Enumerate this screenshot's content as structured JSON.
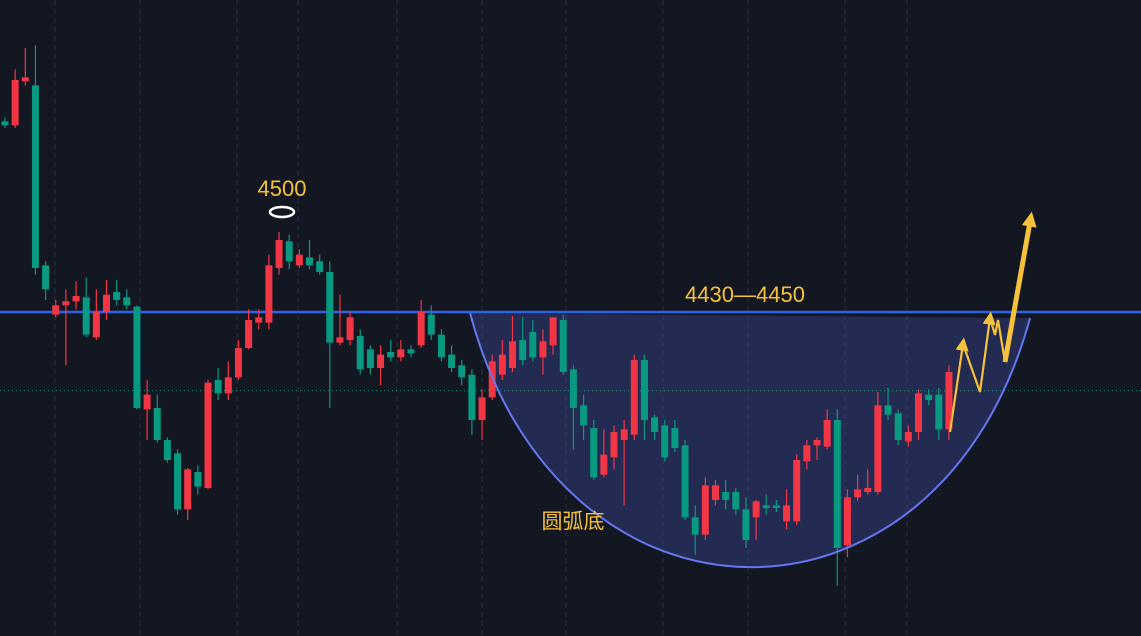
{
  "chart_data": {
    "type": "candlestick",
    "up_color": "#f23645",
    "down_color": "#089981",
    "ylim": [
      4197,
      4674
    ],
    "resistance": 4440,
    "resistance_label": "4430—4450",
    "peak": {
      "value": 4500,
      "label": "4500"
    },
    "dotted_level": 4381,
    "pattern_label": "圆弧底",
    "open": [
      4583,
      4580,
      4613,
      4610,
      4475,
      4438,
      4445,
      4448,
      4451,
      4421,
      4440,
      4455,
      4451,
      4444,
      4367,
      4368,
      4344,
      4334,
      4292,
      4320,
      4308,
      4389,
      4379,
      4391,
      4413,
      4432,
      4432,
      4473,
      4493,
      4475,
      4481,
      4478,
      4470,
      4417,
      4419,
      4422,
      4412,
      4398,
      4410,
      4406,
      4412,
      4415,
      4438,
      4423,
      4408,
      4400,
      4393,
      4359,
      4376,
      4393,
      4398,
      4419,
      4425,
      4406,
      4415,
      4434,
      4397,
      4370,
      4353,
      4318,
      4331,
      4344,
      4348,
      4404,
      4361,
      4355,
      4353,
      4340,
      4286,
      4273,
      4299,
      4305,
      4305,
      4292,
      4286,
      4295,
      4295,
      4283,
      4283,
      4328,
      4340,
      4339,
      4359,
      4265,
      4301,
      4305,
      4305,
      4370,
      4364,
      4343,
      4350,
      4378,
      4378,
      4352
    ],
    "high": [
      4586,
      4622,
      4638,
      4640,
      4478,
      4449,
      4457,
      4463,
      4466,
      4457,
      4464,
      4464,
      4457,
      4445,
      4389,
      4378,
      4346,
      4337,
      4323,
      4325,
      4389,
      4398,
      4403,
      4419,
      4442,
      4442,
      4483,
      4500,
      4498,
      4487,
      4494,
      4483,
      4478,
      4453,
      4440,
      4427,
      4415,
      4415,
      4419,
      4419,
      4415,
      4449,
      4445,
      4427,
      4415,
      4404,
      4397,
      4382,
      4408,
      4419,
      4437,
      4436,
      4434,
      4427,
      4436,
      4438,
      4400,
      4378,
      4359,
      4352,
      4355,
      4359,
      4408,
      4408,
      4363,
      4359,
      4359,
      4344,
      4295,
      4316,
      4314,
      4314,
      4308,
      4301,
      4299,
      4303,
      4299,
      4307,
      4333,
      4344,
      4346,
      4367,
      4367,
      4307,
      4318,
      4322,
      4380,
      4383,
      4367,
      4355,
      4382,
      4382,
      4383,
      4400
    ],
    "low": [
      4578,
      4578,
      4610,
      4468,
      4449,
      4436,
      4400,
      4442,
      4421,
      4419,
      4434,
      4445,
      4442,
      4367,
      4344,
      4342,
      4327,
      4288,
      4284,
      4303,
      4307,
      4374,
      4374,
      4389,
      4412,
      4427,
      4427,
      4468,
      4472,
      4473,
      4472,
      4468,
      4368,
      4415,
      4415,
      4393,
      4393,
      4385,
      4403,
      4403,
      4406,
      4413,
      4419,
      4403,
      4395,
      4385,
      4348,
      4344,
      4374,
      4389,
      4395,
      4400,
      4403,
      4393,
      4408,
      4393,
      4337,
      4344,
      4314,
      4316,
      4322,
      4295,
      4344,
      4344,
      4344,
      4328,
      4335,
      4284,
      4258,
      4269,
      4295,
      4292,
      4288,
      4263,
      4269,
      4288,
      4290,
      4277,
      4280,
      4322,
      4329,
      4337,
      4235,
      4256,
      4298,
      4303,
      4303,
      4359,
      4340,
      4339,
      4344,
      4370,
      4344,
      4344
    ],
    "close": [
      4580,
      4614,
      4616,
      4473,
      4457,
      4445,
      4448,
      4452,
      4423,
      4440,
      4453,
      4449,
      4445,
      4368,
      4378,
      4344,
      4329,
      4292,
      4322,
      4309,
      4387,
      4379,
      4391,
      4413,
      4434,
      4436,
      4475,
      4494,
      4478,
      4483,
      4475,
      4470,
      4417,
      4421,
      4436,
      4397,
      4398,
      4408,
      4406,
      4412,
      4409,
      4440,
      4423,
      4406,
      4398,
      4391,
      4359,
      4376,
      4403,
      4408,
      4418,
      4404,
      4406,
      4418,
      4436,
      4395,
      4368,
      4355,
      4316,
      4333,
      4350,
      4352,
      4404,
      4359,
      4350,
      4331,
      4338,
      4286,
      4273,
      4310,
      4310,
      4299,
      4292,
      4269,
      4298,
      4293,
      4293,
      4295,
      4329,
      4340,
      4344,
      4359,
      4263,
      4301,
      4307,
      4308,
      4370,
      4363,
      4344,
      4350,
      4379,
      4374,
      4352,
      4395
    ]
  }
}
